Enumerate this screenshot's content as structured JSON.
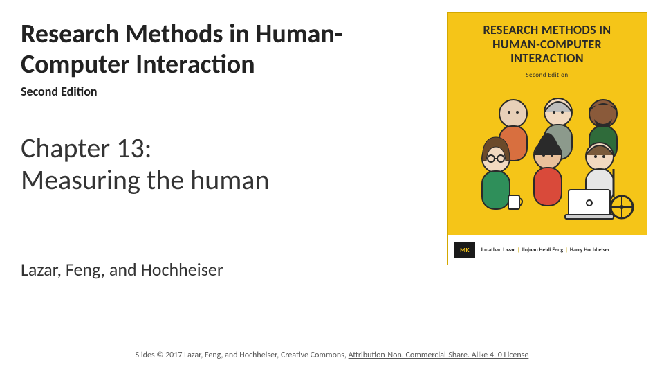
{
  "slide": {
    "title": "Research Methods in Human-Computer Interaction",
    "subtitle": "Second Edition",
    "chapter": "Chapter 13:\nMeasuring the human",
    "authors": "Lazar, Feng, and Hochheiser",
    "footer_prefix": "Slides © 2017 Lazar, Feng, and Hochheiser, Creative Commons, ",
    "footer_license": "Attribution-Non. Commercial-Share. Alike 4. 0 License"
  },
  "cover": {
    "title_line1": "RESEARCH METHODS IN",
    "title_line2": "HUMAN-COMPUTER",
    "title_line3": "INTERACTION",
    "edition": "Second Edition",
    "publisher_logo": "MK",
    "author1": "Jonathan Lazar",
    "author2": "Jinjuan Heidi Feng",
    "author3": "Harry Hochheiser",
    "background_color": "#f5c518",
    "band_color": "#ffffff",
    "logo_bg": "#1a1a1a",
    "logo_fg": "#f5c518"
  }
}
